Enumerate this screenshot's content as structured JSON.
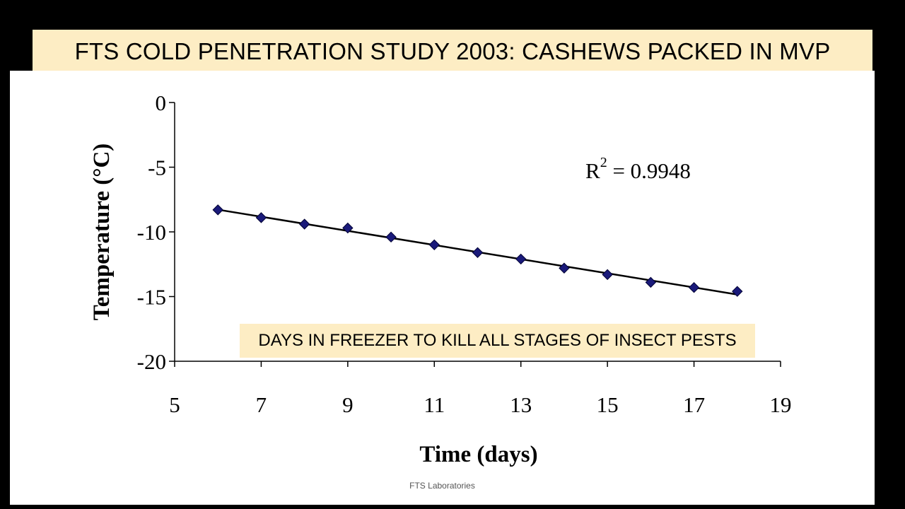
{
  "header": {
    "title": "FTS COLD PENETRATION STUDY 2003: CASHEWS PACKED IN MVP"
  },
  "annotation": {
    "callout": "DAYS IN FREEZER TO KILL ALL STAGES OF INSECT PESTS"
  },
  "footer": {
    "text": "FTS Laboratories"
  },
  "chart_data": {
    "type": "scatter",
    "title": "FTS COLD PENETRATION STUDY 2003: CASHEWS PACKED IN MVP",
    "xlabel": "Time (days)",
    "ylabel": "Temperature (°C)",
    "xlim": [
      5,
      19
    ],
    "ylim": [
      -20,
      0
    ],
    "xticks": [
      5,
      7,
      9,
      11,
      13,
      15,
      17,
      19
    ],
    "yticks": [
      0,
      -5,
      -10,
      -15,
      -20
    ],
    "grid": false,
    "legend": "none",
    "marker_color": "#1a1a7a",
    "series": [
      {
        "marker": "diamond",
        "x": [
          6,
          7,
          8,
          9,
          10,
          11,
          12,
          13,
          14,
          15,
          16,
          17,
          18
        ],
        "y": [
          -8.3,
          -8.9,
          -9.4,
          -9.7,
          -10.4,
          -11.0,
          -11.6,
          -12.1,
          -12.8,
          -13.3,
          -13.9,
          -14.3,
          -14.6
        ]
      }
    ],
    "trendline": {
      "type": "linear",
      "r2_label": "R",
      "r2_sup": "2",
      "r2_value": " = 0.9948"
    }
  }
}
